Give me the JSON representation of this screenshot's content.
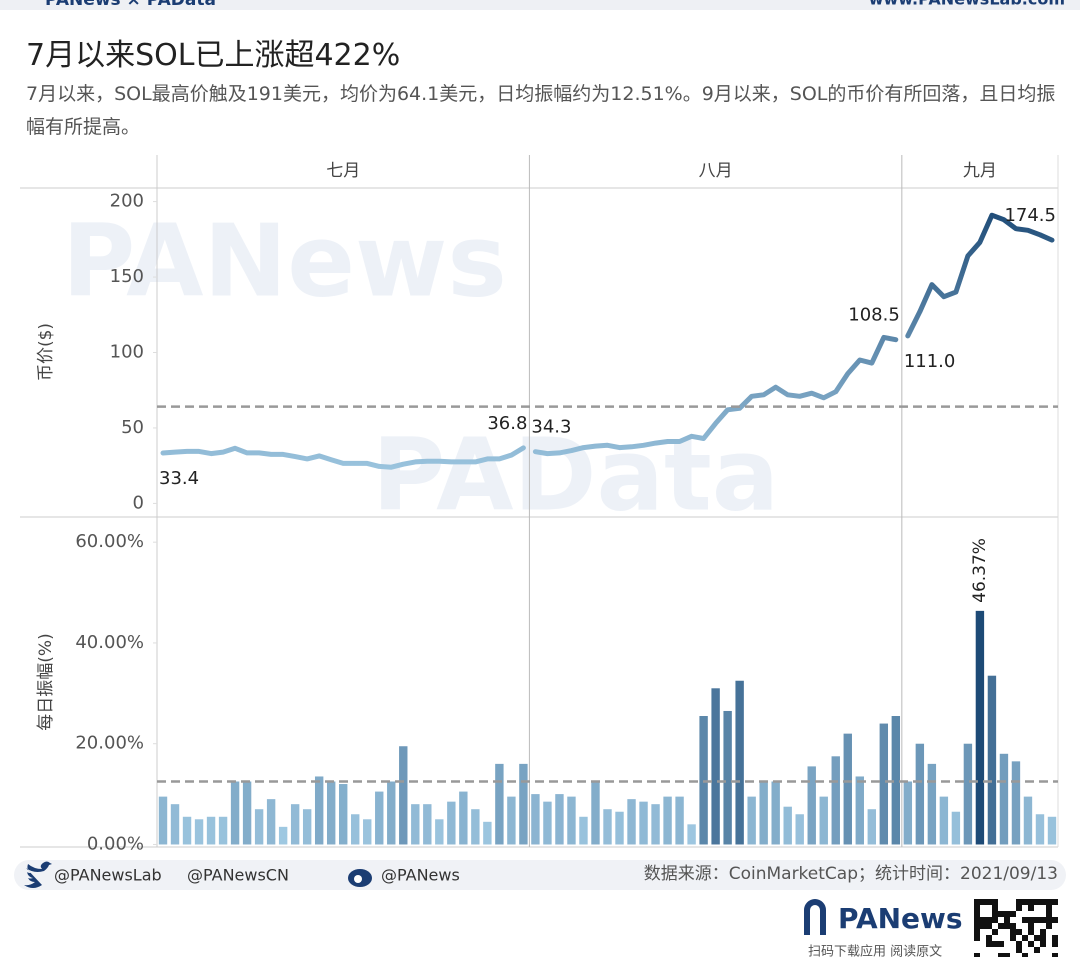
{
  "header": {
    "brand_left": "PANews × PAData",
    "brand_right": "www.PANewsLab.com"
  },
  "chart_data": {
    "type": "panel",
    "title": "7月以来SOL已上涨超422%",
    "subtitle": "7月以来，SOL最高价触及191美元，均价为64.1美元，日均振幅约为12.51%。9月以来，SOL的币价有所回落，且日均振幅有所提高。",
    "watermarks": [
      "PANews",
      "PAData"
    ],
    "color_range": [
      "#a9d2ea",
      "#1d4a76"
    ],
    "months": [
      {
        "name": "七月",
        "price": [
          33.4,
          34,
          34.5,
          34.5,
          33,
          34,
          36.5,
          33.5,
          33.5,
          32.5,
          32.5,
          31,
          29.5,
          31.5,
          29,
          26.5,
          26.5,
          26.5,
          24.5,
          24,
          26,
          27.5,
          28,
          28,
          27.5,
          27.5,
          27.5,
          29.5,
          29.5,
          32,
          36.8
        ],
        "price_labels": [
          "33.4",
          null,
          null,
          null,
          null,
          null,
          null,
          null,
          null,
          null,
          null,
          null,
          null,
          null,
          null,
          null,
          null,
          null,
          null,
          null,
          null,
          null,
          null,
          null,
          null,
          null,
          null,
          null,
          null,
          null,
          "36.8"
        ],
        "amplitude": [
          9.5,
          8,
          5.5,
          5,
          5.5,
          5.5,
          12.5,
          12.5,
          7,
          9,
          3.5,
          8,
          7,
          13.5,
          12.5,
          12,
          6,
          5,
          10.5,
          12.5,
          19.5,
          8,
          8,
          5,
          8.5,
          10.5,
          7,
          4.5,
          16,
          9.5,
          16
        ],
        "amplitude_labels": null
      },
      {
        "name": "八月",
        "price": [
          34.3,
          33,
          33.5,
          35,
          37,
          38,
          38.5,
          37,
          37.5,
          38.5,
          40,
          41,
          41,
          44.5,
          43,
          53,
          62,
          63,
          71,
          72,
          77,
          72,
          71,
          73,
          70,
          74,
          86,
          95,
          93,
          110,
          108.5
        ],
        "price_labels": [
          "34.3",
          null,
          null,
          null,
          null,
          null,
          null,
          null,
          null,
          null,
          null,
          null,
          null,
          null,
          null,
          null,
          null,
          null,
          null,
          null,
          null,
          null,
          null,
          null,
          null,
          null,
          null,
          null,
          null,
          null,
          "108.5"
        ],
        "amplitude": [
          10,
          8.5,
          10,
          9.5,
          5.5,
          12.5,
          7,
          6.5,
          9,
          8.5,
          8,
          9.5,
          9.5,
          4,
          25.5,
          31,
          26.5,
          32.5,
          9.5,
          12.5,
          12.5,
          7.5,
          6,
          15.5,
          9.5,
          17.5,
          22,
          13.5,
          7,
          24,
          25.5
        ],
        "amplitude_labels": null
      },
      {
        "name": "九月",
        "price": [
          111.0,
          127,
          145,
          137,
          140,
          164,
          173,
          191,
          188,
          182,
          181,
          178,
          174.5
        ],
        "price_labels": [
          "111.0",
          null,
          null,
          null,
          null,
          null,
          null,
          null,
          null,
          null,
          null,
          null,
          "174.5"
        ],
        "amplitude": [
          12.5,
          20,
          16,
          9.5,
          6.5,
          20,
          46.37,
          33.5,
          18,
          16.5,
          9.5,
          6,
          5.5
        ],
        "amplitude_labels": [
          null,
          null,
          null,
          null,
          null,
          null,
          "46.37%",
          null,
          null,
          null,
          null,
          null,
          null
        ]
      }
    ],
    "price_axis": {
      "type": "line",
      "label": "币价($)",
      "ylim": [
        -9,
        209
      ],
      "yticks": [
        0,
        50,
        100,
        150,
        200
      ],
      "reference": 64.1
    },
    "amplitude_axis": {
      "type": "bar",
      "label": "每日振幅(%)",
      "ylim": [
        -0.5,
        65
      ],
      "yticks": [
        {
          "value": 0,
          "label": "0.00%"
        },
        {
          "value": 20,
          "label": "20.00%"
        },
        {
          "value": 40,
          "label": "40.00%"
        },
        {
          "value": 60,
          "label": "60.00%"
        }
      ],
      "reference": 12.51
    }
  },
  "footer": {
    "social": [
      "@PANewsLab",
      "@PANewsCN",
      "@PANews"
    ],
    "source": "数据来源：CoinMarketCap；统计时间：2021/09/13",
    "logo": "PANews",
    "qr_caption": "扫码下载应用 阅读原文"
  }
}
